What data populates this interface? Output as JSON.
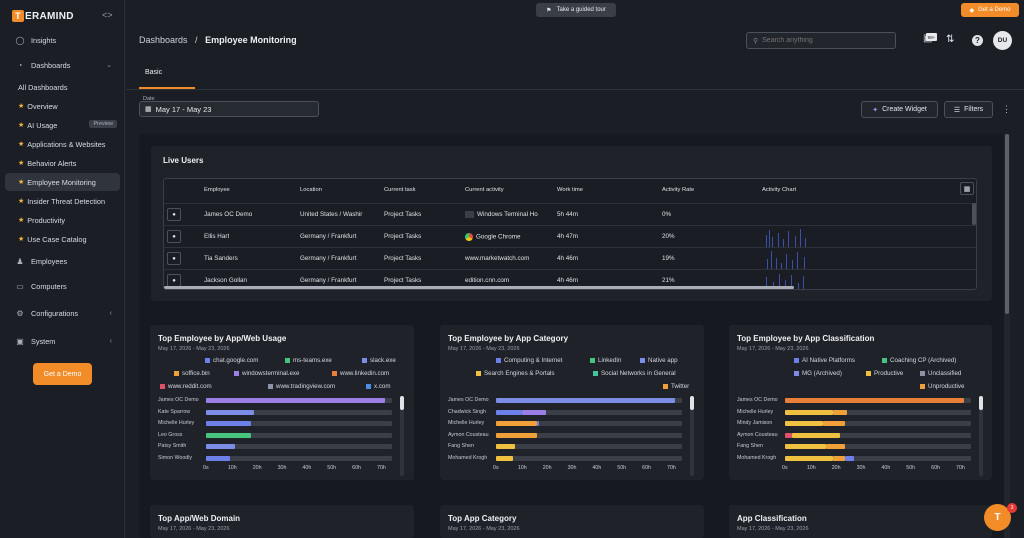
{
  "app": {
    "logo_text": "ERAMIND",
    "logo_letter": "T"
  },
  "topbar": {
    "tour": "Take a guided tour",
    "get_demo": "Get a Demo"
  },
  "sidebar": {
    "items": [
      {
        "label": "Insights"
      },
      {
        "label": "Dashboards"
      },
      {
        "label": "All Dashboards"
      },
      {
        "label": "Overview"
      },
      {
        "label": "AI Usage",
        "badge": "Preview"
      },
      {
        "label": "Applications & Websites"
      },
      {
        "label": "Behavior Alerts"
      },
      {
        "label": "Employee Monitoring"
      },
      {
        "label": "Insider Threat Detection"
      },
      {
        "label": "Productivity"
      },
      {
        "label": "Use Case Catalog"
      },
      {
        "label": "Employees"
      },
      {
        "label": "Computers"
      },
      {
        "label": "Configurations"
      },
      {
        "label": "System"
      }
    ],
    "get_demo": "Get a Demo"
  },
  "header": {
    "crumb_root": "Dashboards",
    "crumb_sep": "/",
    "crumb_current": "Employee Monitoring",
    "search_placeholder": "Search anything",
    "badge_count": "99+",
    "avatar": "DU"
  },
  "tabs": {
    "basic": "Basic"
  },
  "filters": {
    "date_label": "Date",
    "date_value": "May 17 - May 23",
    "create_widget": "Create Widget",
    "filters": "Filters"
  },
  "live_users": {
    "title": "Live Users",
    "columns": [
      "Employee",
      "Location",
      "Current task",
      "Current activity",
      "Work time",
      "Activity Rate",
      "Activity Chart"
    ],
    "rows": [
      {
        "employee": "James OC Demo",
        "location": "United States / Washir",
        "task": "Project Tasks",
        "activity": "Windows Terminal Ho",
        "work": "5h 44m",
        "rate": "0%"
      },
      {
        "employee": "Ellis Hart",
        "location": "Germany / Frankfurt",
        "task": "Project Tasks",
        "activity": "Google Chrome",
        "work": "4h 47m",
        "rate": "20%"
      },
      {
        "employee": "Tia Sanders",
        "location": "Germany / Frankfurt",
        "task": "Project Tasks",
        "activity": "www.marketwatch.com",
        "work": "4h 46m",
        "rate": "19%"
      },
      {
        "employee": "Jackson Gollan",
        "location": "Germany / Frankfurt",
        "task": "Project Tasks",
        "activity": "edition.cnn.com",
        "work": "4h 46m",
        "rate": "21%"
      }
    ]
  },
  "charts_meta": {
    "c1": {
      "title": "Top Employee by App/Web Usage",
      "date": "May 17, 2026 - May 23, 2026"
    },
    "c2": {
      "title": "Top Employee by App Category",
      "date": "May 17, 2026 - May 23, 2026"
    },
    "c3": {
      "title": "Top Employee by App Classification",
      "date": "May 17, 2026 - May 23, 2026"
    },
    "c4": {
      "title": "Top App/Web Domain",
      "date": "May 17, 2026 - May 23, 2026"
    },
    "c5": {
      "title": "Top App Category",
      "date": "May 17, 2026 - May 23, 2026"
    },
    "c6": {
      "title": "App Classification",
      "date": "May 17, 2026 - May 23, 2026"
    }
  },
  "chart_data": [
    {
      "type": "bar",
      "orientation": "horizontal",
      "stacked": true,
      "categories": [
        "James OC Demo",
        "Kate Sparrow",
        "Michelle Hurley",
        "Leo Gross",
        "Patsy Smith",
        "Simon Woodly"
      ],
      "legend": [
        {
          "name": "chat.google.com",
          "color": "#6d7fe8"
        },
        {
          "name": "ms-teams.exe",
          "color": "#46c47e"
        },
        {
          "name": "slack.exe",
          "color": "#7c8de8"
        },
        {
          "name": "soffice.bin",
          "color": "#f0a038"
        },
        {
          "name": "windowsterminal.exe",
          "color": "#9b7ee6"
        },
        {
          "name": "www.linkedin.com",
          "color": "#e8803a"
        },
        {
          "name": "www.reddit.com",
          "color": "#e0506a"
        },
        {
          "name": "www.tradingview.com",
          "color": "#8a94a6"
        },
        {
          "name": "x.com",
          "color": "#4a8ee8"
        }
      ],
      "bars": [
        [
          {
            "value": 75,
            "color": "#9b7ee6"
          }
        ],
        [
          {
            "value": 20,
            "color": "#7c8de8"
          }
        ],
        [
          {
            "value": 19,
            "color": "#6d7fe8"
          }
        ],
        [
          {
            "value": 19,
            "color": "#46c47e"
          }
        ],
        [
          {
            "value": 12,
            "color": "#7c8de8"
          }
        ],
        [
          {
            "value": 10,
            "color": "#6d7fe8"
          }
        ]
      ],
      "xticks": [
        "0s",
        "10h",
        "20h",
        "30h",
        "40h",
        "50h",
        "60h",
        "70h"
      ],
      "xlim": [
        0,
        78
      ]
    },
    {
      "type": "bar",
      "orientation": "horizontal",
      "stacked": true,
      "categories": [
        "James OC Demo",
        "Chadwick Singh",
        "Michelle Hurley",
        "Aymon Cousteau",
        "Fang Shen",
        "Mohamed Krogh"
      ],
      "legend": [
        {
          "name": "Computing & Internet",
          "color": "#6d7fe8"
        },
        {
          "name": "LinkedIn",
          "color": "#46c47e"
        },
        {
          "name": "Native app",
          "color": "#7c8de8"
        },
        {
          "name": "Search Engines & Portals",
          "color": "#f0c040"
        },
        {
          "name": "Social Networks in General",
          "color": "#46c4a0"
        },
        {
          "name": "Twitter",
          "color": "#f0a038"
        }
      ],
      "bars": [
        [
          {
            "value": 75,
            "color": "#7c8de8"
          }
        ],
        [
          {
            "value": 11,
            "color": "#6d7fe8"
          },
          {
            "value": 10,
            "color": "#9b7ee6"
          }
        ],
        [
          {
            "value": 17,
            "color": "#f0a038"
          },
          {
            "value": 1,
            "color": "#6d7fe8"
          }
        ],
        [
          {
            "value": 17,
            "color": "#f0a038"
          }
        ],
        [
          {
            "value": 8,
            "color": "#f0c040"
          }
        ],
        [
          {
            "value": 7,
            "color": "#f0c040"
          }
        ]
      ],
      "xticks": [
        "0s",
        "10h",
        "20h",
        "30h",
        "40h",
        "50h",
        "60h",
        "70h"
      ],
      "xlim": [
        0,
        78
      ]
    },
    {
      "type": "bar",
      "orientation": "horizontal",
      "stacked": true,
      "categories": [
        "James OC Demo",
        "Michelle Hurley",
        "Mindy Jamison",
        "Aymon Cousteau",
        "Fang Shen",
        "Mohamed Krogh"
      ],
      "legend": [
        {
          "name": "AI Native Platforms",
          "color": "#6d7fe8"
        },
        {
          "name": "Coaching CP (Archived)",
          "color": "#46c47e"
        },
        {
          "name": "MG (Archived)",
          "color": "#7c8de8"
        },
        {
          "name": "Productive",
          "color": "#f0c040"
        },
        {
          "name": "Unclassified",
          "color": "#8a94a6"
        },
        {
          "name": "Unproductive",
          "color": "#f0a038"
        }
      ],
      "bars": [
        [
          {
            "value": 75,
            "color": "#e8803a"
          }
        ],
        [
          {
            "value": 20,
            "color": "#f0c040"
          },
          {
            "value": 6,
            "color": "#f0a038"
          }
        ],
        [
          {
            "value": 16,
            "color": "#f0c040"
          },
          {
            "value": 9,
            "color": "#f0a038"
          }
        ],
        [
          {
            "value": 3,
            "color": "#e0506a"
          },
          {
            "value": 20,
            "color": "#f0c040"
          }
        ],
        [
          {
            "value": 17,
            "color": "#f0c040"
          },
          {
            "value": 8,
            "color": "#f0a038"
          }
        ],
        [
          {
            "value": 20,
            "color": "#f0c040"
          },
          {
            "value": 5,
            "color": "#f0a038"
          },
          {
            "value": 4,
            "color": "#6d7fe8"
          }
        ]
      ],
      "xticks": [
        "0s",
        "10h",
        "20h",
        "30h",
        "40h",
        "50h",
        "60h",
        "70h"
      ],
      "xlim": [
        0,
        78
      ]
    }
  ],
  "chat": {
    "letter": "T",
    "badge": "3"
  }
}
